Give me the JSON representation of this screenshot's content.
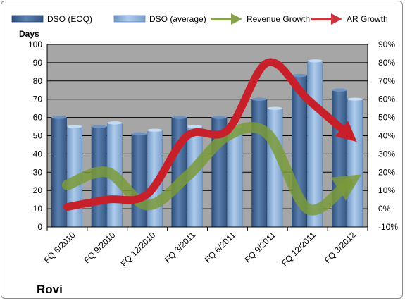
{
  "chart_data": {
    "type": "bar",
    "title": "",
    "company": "Rovi",
    "categories": [
      "FQ 6/2010",
      "FQ 9/2010",
      "FQ 12/2010",
      "FQ 3/2011",
      "FQ 6/2011",
      "FQ 9/2011",
      "FQ 12/2011",
      "FQ 3/2012"
    ],
    "series": [
      {
        "name": "DSO (EOQ)",
        "type": "bar",
        "axis": "left",
        "values": [
          60,
          55,
          51,
          60,
          60,
          70,
          83,
          75
        ]
      },
      {
        "name": "DSO (average)",
        "type": "bar",
        "axis": "left",
        "values": [
          55,
          57,
          53,
          55,
          55,
          65,
          91,
          70
        ]
      },
      {
        "name": "Revenue Growth",
        "type": "line",
        "axis": "right",
        "unit": "%",
        "values": [
          13,
          20,
          2,
          18,
          40,
          41,
          0,
          14
        ]
      },
      {
        "name": "AR Growth",
        "type": "line",
        "axis": "right",
        "unit": "%",
        "values": [
          1,
          5,
          8,
          40,
          43,
          80,
          60,
          41
        ]
      }
    ],
    "ylabel": "Days",
    "ylim": [
      0,
      100
    ],
    "yticks": [
      "0",
      "10",
      "20",
      "30",
      "40",
      "50",
      "60",
      "70",
      "80",
      "90",
      "100"
    ],
    "y2lim": [
      -10,
      90
    ],
    "y2ticks": [
      "-10%",
      "0%",
      "10%",
      "20%",
      "30%",
      "40%",
      "50%",
      "60%",
      "70%",
      "80%",
      "90%"
    ],
    "grid": true,
    "legend_position": "top",
    "colors": {
      "dso_eoq": "#4a6f9e",
      "dso_average": "#8fb4dc",
      "revenue_growth": "#7a9a3a",
      "ar_growth": "#c8202a",
      "plot_background": "#a6a6a6",
      "gridline": "#000000"
    }
  }
}
